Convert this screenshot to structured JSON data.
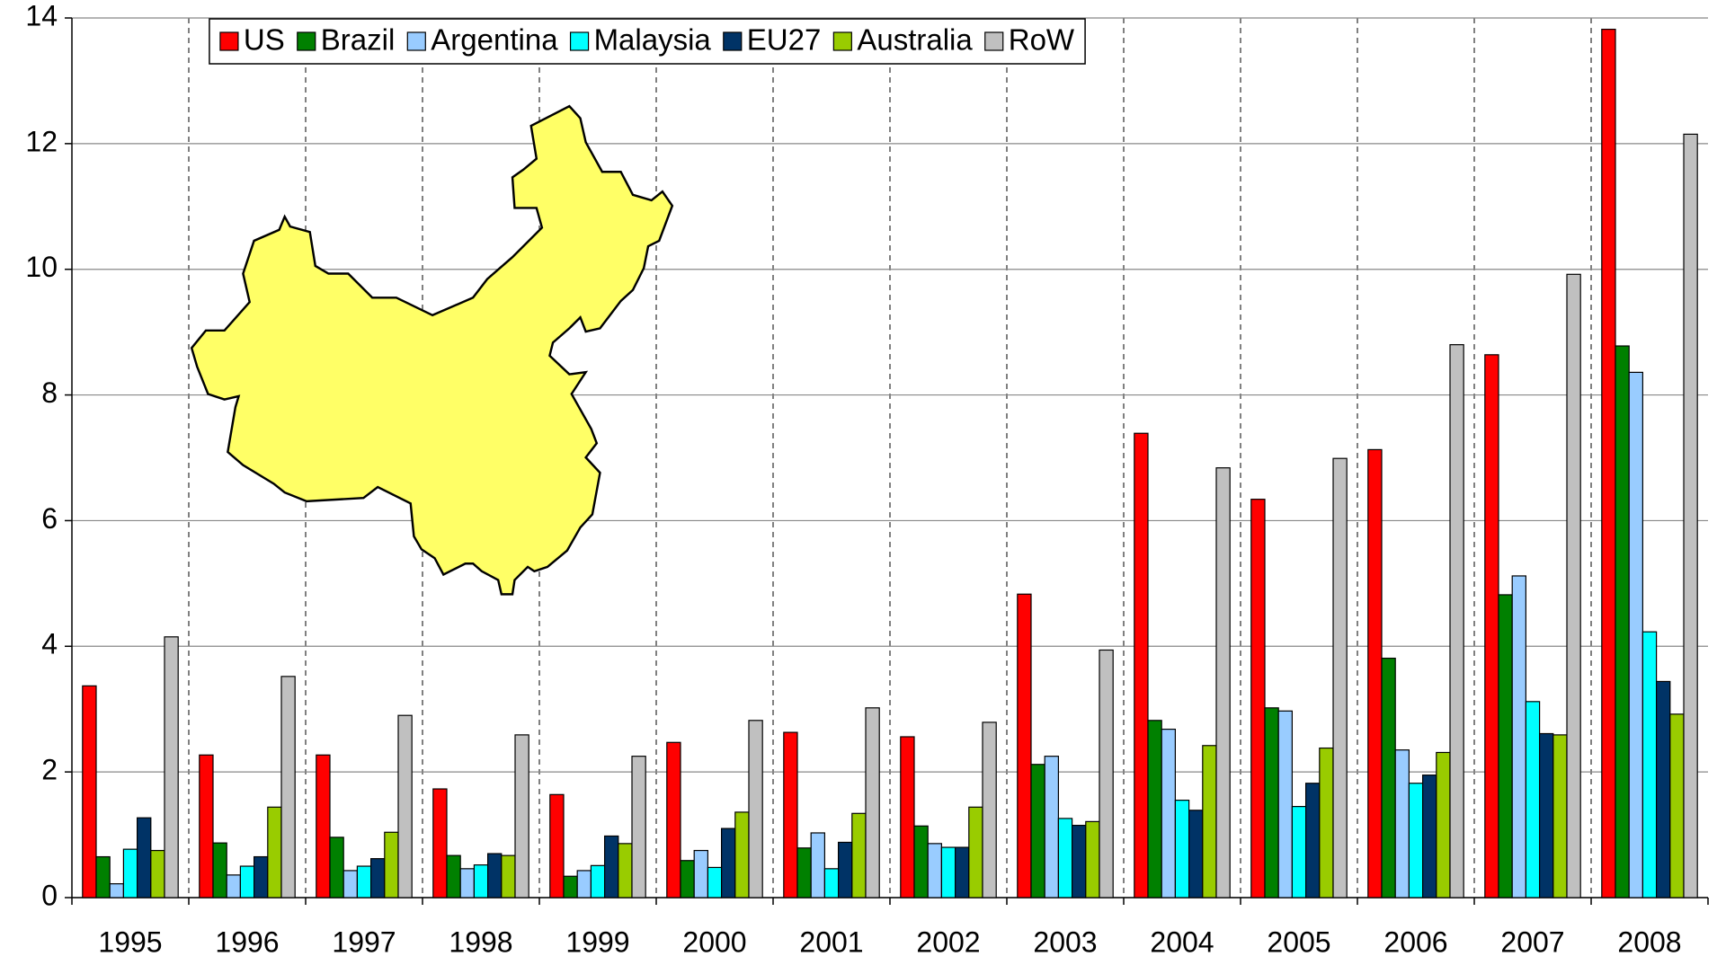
{
  "chart_data": {
    "type": "bar",
    "categories": [
      "1995",
      "1996",
      "1997",
      "1998",
      "1999",
      "2000",
      "2001",
      "2002",
      "2003",
      "2004",
      "2005",
      "2006",
      "2007",
      "2008"
    ],
    "series": [
      {
        "name": "US",
        "color": "#ff0000",
        "values": [
          3.37,
          2.27,
          2.27,
          1.73,
          1.64,
          2.47,
          2.63,
          2.56,
          4.83,
          7.39,
          6.34,
          7.13,
          8.64,
          13.82
        ]
      },
      {
        "name": "Brazil",
        "color": "#008000",
        "values": [
          0.65,
          0.87,
          0.96,
          0.67,
          0.34,
          0.59,
          0.79,
          1.14,
          2.12,
          2.82,
          3.02,
          3.81,
          4.82,
          8.78
        ]
      },
      {
        "name": "Argentina",
        "color": "#99ccff",
        "values": [
          0.22,
          0.36,
          0.43,
          0.46,
          0.43,
          0.75,
          1.03,
          0.86,
          2.25,
          2.68,
          2.97,
          2.35,
          5.12,
          8.36
        ]
      },
      {
        "name": "Malaysia",
        "color": "#00ffff",
        "values": [
          0.77,
          0.5,
          0.5,
          0.52,
          0.51,
          0.48,
          0.46,
          0.8,
          1.26,
          1.55,
          1.45,
          1.82,
          3.12,
          4.23
        ]
      },
      {
        "name": "EU27",
        "color": "#003366",
        "values": [
          1.27,
          0.65,
          0.62,
          0.7,
          0.98,
          1.1,
          0.88,
          0.8,
          1.15,
          1.39,
          1.82,
          1.95,
          2.61,
          3.44
        ]
      },
      {
        "name": "Australia",
        "color": "#99cc00",
        "values": [
          0.75,
          1.44,
          1.04,
          0.67,
          0.86,
          1.36,
          1.34,
          1.44,
          1.21,
          2.42,
          2.38,
          2.31,
          2.59,
          2.92
        ]
      },
      {
        "name": "RoW",
        "color": "#c0c0c0",
        "values": [
          4.15,
          3.52,
          2.9,
          2.59,
          2.25,
          2.82,
          3.02,
          2.79,
          3.94,
          6.84,
          6.99,
          8.8,
          9.92,
          12.15
        ]
      }
    ],
    "ylim": [
      0,
      14
    ],
    "yticks": [
      0,
      2,
      4,
      6,
      8,
      10,
      12,
      14
    ],
    "grid": true,
    "legend": "top"
  }
}
